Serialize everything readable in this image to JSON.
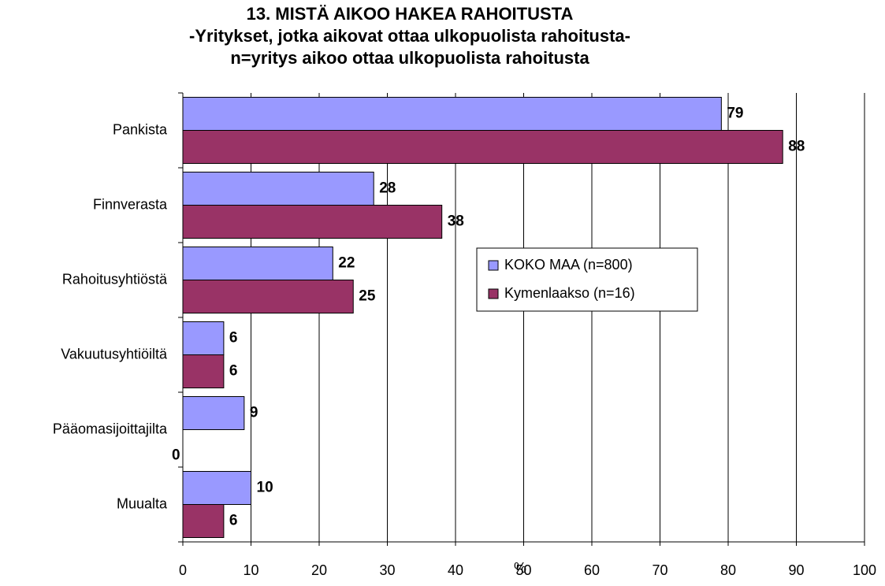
{
  "chart_data": {
    "type": "bar",
    "orientation": "horizontal",
    "title": "13. MISTÄ AIKOO HAKEA RAHOITUSTA",
    "subtitle": [
      "-Yritykset, jotka aikovat ottaa ulkopuolista rahoitusta-",
      "n=yritys aikoo ottaa ulkopuolista rahoitusta"
    ],
    "x_label": "%",
    "categories": [
      "Pankista",
      "Finnverasta",
      "Rahoitusyhtiöstä",
      "Vakuutusyhtiöiltä",
      "Pääomasijoittajilta",
      "Muualta"
    ],
    "series": [
      {
        "name": "KOKO MAA (n=800)",
        "color": "#9999ff",
        "values": [
          79,
          28,
          22,
          6,
          9,
          10
        ]
      },
      {
        "name": "Kymenlaakso (n=16)",
        "color": "#993366",
        "values": [
          88,
          38,
          25,
          6,
          0,
          6
        ]
      }
    ],
    "xlim": [
      0,
      100
    ],
    "xticks": [
      0,
      10,
      20,
      30,
      40,
      50,
      60,
      70,
      80,
      90,
      100
    ],
    "grid": true
  }
}
